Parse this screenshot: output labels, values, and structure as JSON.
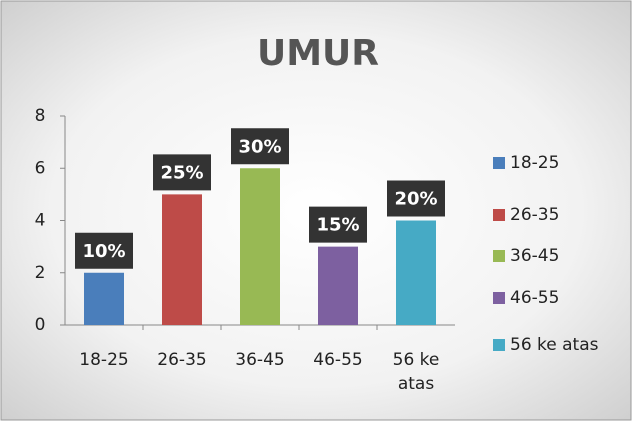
{
  "chart_data": {
    "type": "bar",
    "title": "UMUR",
    "categories": [
      "18-25",
      "26-35",
      "36-45",
      "46-55",
      "56 ke atas"
    ],
    "values": [
      2,
      5,
      6,
      3,
      4
    ],
    "data_labels": [
      "10%",
      "25%",
      "30%",
      "15%",
      "20%"
    ],
    "colors": [
      "#4a7ebb",
      "#be4b48",
      "#98b954",
      "#7d60a0",
      "#46aac5"
    ],
    "ylim": [
      0,
      8
    ],
    "yticks": [
      0,
      2,
      4,
      6,
      8
    ],
    "grid": false,
    "legend": "right"
  }
}
